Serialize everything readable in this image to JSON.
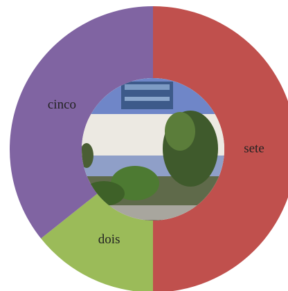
{
  "chart_data": {
    "type": "donut",
    "categories": [
      "sete",
      "dois",
      "cinco"
    ],
    "values": [
      7,
      2,
      5
    ],
    "colors": [
      "#c0504d",
      "#9bbb59",
      "#8064a2"
    ]
  }
}
